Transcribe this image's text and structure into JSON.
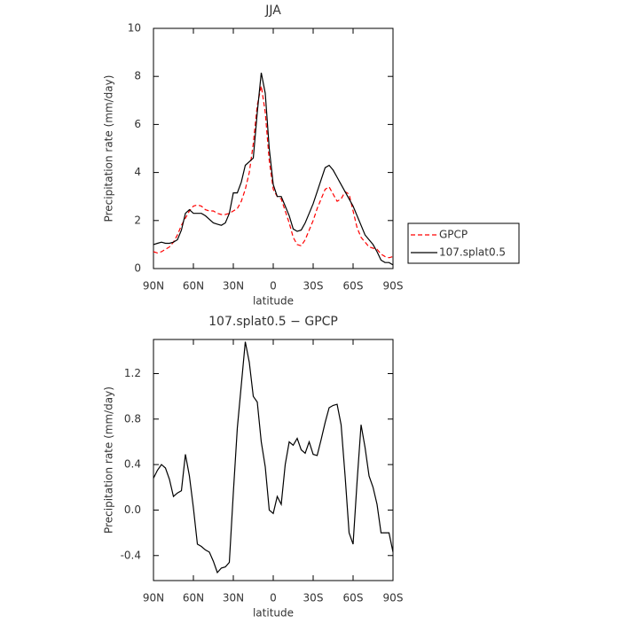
{
  "chart_data": [
    {
      "type": "line",
      "title": "JJA",
      "x_label": "latitude",
      "y_label": "Precipitation rate (mm/day)",
      "xlim": [
        90,
        -90
      ],
      "ylim": [
        0,
        10
      ],
      "xticks": [
        {
          "value": 90,
          "label": "90N"
        },
        {
          "value": 60,
          "label": "60N"
        },
        {
          "value": 30,
          "label": "30N"
        },
        0,
        {
          "value": -30,
          "label": "30S"
        },
        {
          "value": -60,
          "label": "60S"
        },
        {
          "value": -90,
          "label": "90S"
        }
      ],
      "yticks": [
        0,
        2,
        4,
        6,
        8,
        10
      ],
      "legend": "right",
      "x": [
        90,
        87,
        84,
        81,
        78,
        75,
        72,
        69,
        66,
        63,
        60,
        57,
        54,
        51,
        48,
        45,
        42,
        39,
        36,
        33,
        30,
        27,
        24,
        21,
        18,
        15,
        12,
        9,
        6,
        3,
        0,
        -3,
        -6,
        -9,
        -12,
        -15,
        -18,
        -21,
        -24,
        -27,
        -30,
        -33,
        -36,
        -39,
        -42,
        -45,
        -48,
        -51,
        -54,
        -57,
        -60,
        -63,
        -66,
        -69,
        -72,
        -75,
        -78,
        -81,
        -84,
        -87,
        -90
      ],
      "series": [
        {
          "name": "GPCP",
          "color": "#ff0000",
          "linestyle": "dashed",
          "values": [
            0.7,
            0.65,
            0.7,
            0.8,
            0.9,
            1.1,
            1.4,
            1.8,
            2.1,
            2.4,
            2.6,
            2.65,
            2.6,
            2.45,
            2.4,
            2.4,
            2.3,
            2.25,
            2.25,
            2.3,
            2.4,
            2.5,
            2.8,
            3.3,
            4.0,
            5.2,
            6.8,
            7.6,
            6.5,
            4.5,
            3.3,
            3.0,
            2.9,
            2.4,
            1.9,
            1.3,
            1.0,
            0.95,
            1.2,
            1.6,
            2.0,
            2.5,
            2.9,
            3.3,
            3.4,
            3.1,
            2.8,
            2.9,
            3.2,
            3.1,
            2.4,
            1.7,
            1.3,
            1.1,
            0.9,
            0.85,
            0.8,
            0.6,
            0.5,
            0.45,
            0.5
          ]
        },
        {
          "name": "107.splat0.5",
          "color": "#000000",
          "linestyle": "solid",
          "values": [
            1.0,
            1.05,
            1.1,
            1.05,
            1.05,
            1.1,
            1.2,
            1.6,
            2.3,
            2.45,
            2.3,
            2.3,
            2.3,
            2.2,
            2.05,
            1.9,
            1.85,
            1.8,
            1.9,
            2.3,
            3.15,
            3.15,
            3.6,
            4.3,
            4.45,
            4.6,
            6.5,
            8.15,
            7.3,
            5.0,
            3.5,
            3.0,
            3.0,
            2.6,
            2.2,
            1.65,
            1.55,
            1.6,
            1.9,
            2.3,
            2.7,
            3.2,
            3.7,
            4.2,
            4.3,
            4.1,
            3.8,
            3.5,
            3.2,
            2.9,
            2.6,
            2.2,
            1.8,
            1.4,
            1.2,
            1.0,
            0.7,
            0.35,
            0.25,
            0.25,
            0.15
          ]
        }
      ]
    },
    {
      "type": "line",
      "title": "107.splat0.5 − GPCP",
      "x_label": "latitude",
      "y_label": "Precipitation rate (mm/day)",
      "xlim": [
        90,
        -90
      ],
      "ylim": [
        -0.62,
        1.5
      ],
      "xticks": [
        {
          "value": 90,
          "label": "90N"
        },
        {
          "value": 60,
          "label": "60N"
        },
        {
          "value": 30,
          "label": "30N"
        },
        0,
        {
          "value": -30,
          "label": "30S"
        },
        {
          "value": -60,
          "label": "60S"
        },
        {
          "value": -90,
          "label": "90S"
        }
      ],
      "yticks": [
        -0.4,
        {
          "value": 0,
          "label": "0.0"
        },
        0.4,
        0.8,
        1.2
      ],
      "x": [
        90,
        87,
        84,
        81,
        78,
        75,
        72,
        69,
        66,
        63,
        60,
        57,
        54,
        51,
        48,
        45,
        42,
        39,
        36,
        33,
        30,
        27,
        24,
        21,
        18,
        15,
        12,
        9,
        6,
        3,
        0,
        -3,
        -6,
        -9,
        -12,
        -15,
        -18,
        -21,
        -24,
        -27,
        -30,
        -33,
        -36,
        -39,
        -42,
        -45,
        -48,
        -51,
        -54,
        -57,
        -60,
        -63,
        -66,
        -69,
        -72,
        -75,
        -78,
        -81,
        -84,
        -87,
        -90
      ],
      "series": [
        {
          "color": "#000000",
          "linestyle": "solid",
          "values": [
            0.28,
            0.35,
            0.4,
            0.37,
            0.27,
            0.12,
            0.15,
            0.17,
            0.49,
            0.3,
            0.02,
            -0.3,
            -0.32,
            -0.35,
            -0.37,
            -0.45,
            -0.55,
            -0.51,
            -0.5,
            -0.46,
            0.15,
            0.72,
            1.1,
            1.48,
            1.3,
            1.0,
            0.95,
            0.6,
            0.38,
            0.0,
            -0.03,
            0.12,
            0.05,
            0.4,
            0.6,
            0.57,
            0.63,
            0.53,
            0.5,
            0.6,
            0.49,
            0.48,
            0.62,
            0.77,
            0.9,
            0.92,
            0.93,
            0.75,
            0.3,
            -0.2,
            -0.3,
            0.25,
            0.75,
            0.55,
            0.3,
            0.2,
            0.05,
            -0.2,
            -0.2,
            -0.2,
            -0.37
          ]
        }
      ]
    }
  ]
}
